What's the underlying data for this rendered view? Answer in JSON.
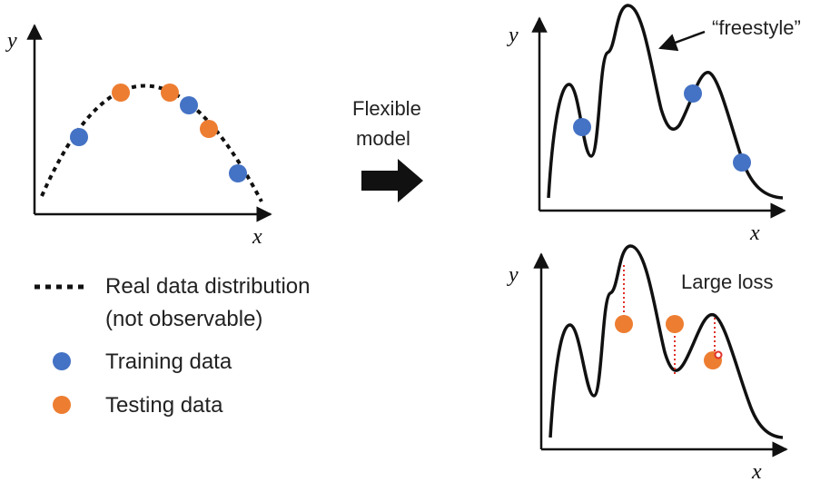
{
  "left_plot": {
    "y_label": "y",
    "x_label": "x"
  },
  "arrow": {
    "label_line1": "Flexible",
    "label_line2": "model"
  },
  "top_right_plot": {
    "y_label": "y",
    "x_label": "x",
    "annotation": "“freestyle”"
  },
  "bottom_right_plot": {
    "y_label": "y",
    "x_label": "x",
    "annotation": "Large loss"
  },
  "legend": {
    "real_line1": "Real data distribution",
    "real_line2": "(not observable)",
    "training": "Training data",
    "testing": "Testing data"
  },
  "colors": {
    "training": "#4472C4",
    "testing": "#ED7D31",
    "loss_line": "#E0302A"
  }
}
